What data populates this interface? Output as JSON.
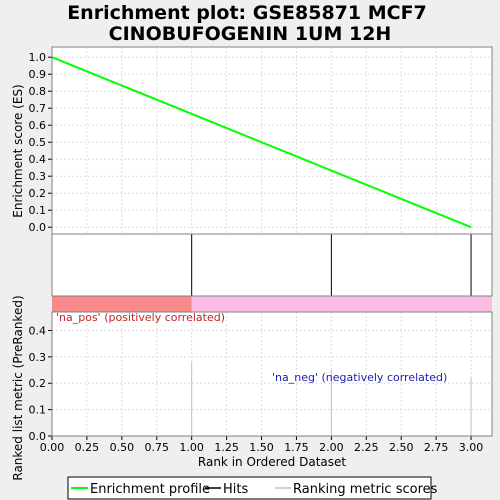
{
  "chart_data": {
    "type": "line",
    "title_lines": [
      "Enrichment plot: GSE85871 MCF7",
      "CINOBUFOGENIN 1UM 12H"
    ],
    "enrichment": {
      "ylabel": "Enrichment score (ES)",
      "ylim": [
        -0.04,
        1.06
      ],
      "yticks": [
        "0.0",
        "0.1",
        "0.2",
        "0.3",
        "0.4",
        "0.5",
        "0.6",
        "0.7",
        "0.8",
        "0.9",
        "1.0"
      ],
      "profile_x": [
        0,
        3
      ],
      "profile_y": [
        1.0,
        0.0
      ],
      "color": "#00ff00"
    },
    "hits": {
      "x": [
        0,
        1,
        2,
        3
      ]
    },
    "gradient_bar": {
      "pos_color": "#f88a8a",
      "neg_color": "#fbbde3",
      "split_x": 1.0
    },
    "ranked": {
      "ylabel": "Ranked list metric (PreRanked)",
      "ylim": [
        0,
        0.47
      ],
      "yticks": [
        "0.0",
        "0.1",
        "0.2",
        "0.3",
        "0.4"
      ],
      "x": [
        1,
        2,
        3
      ],
      "values": [
        0.28,
        0.25,
        0.22
      ],
      "pos_label": "'na_pos' (positively correlated)",
      "neg_label": "'na_neg' (negatively correlated)"
    },
    "xaxis": {
      "label": "Rank in Ordered Dataset",
      "xlim": [
        0,
        3.15
      ],
      "ticks": [
        "0.00",
        "0.25",
        "0.50",
        "0.75",
        "1.00",
        "1.25",
        "1.50",
        "1.75",
        "2.00",
        "2.25",
        "2.50",
        "2.75",
        "3.00"
      ]
    },
    "legend": {
      "items": [
        "Enrichment profile",
        "Hits",
        "Ranking metric scores"
      ],
      "colors": [
        "#00ff00",
        "#000000",
        "#c0c0c0"
      ]
    }
  }
}
